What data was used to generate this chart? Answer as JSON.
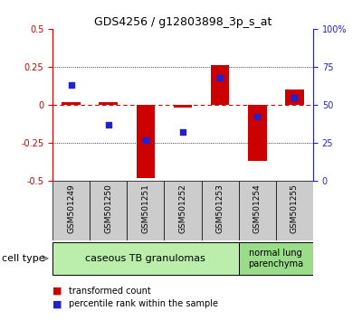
{
  "title": "GDS4256 / g12803898_3p_s_at",
  "samples": [
    "GSM501249",
    "GSM501250",
    "GSM501251",
    "GSM501252",
    "GSM501253",
    "GSM501254",
    "GSM501255"
  ],
  "red_values": [
    0.02,
    0.02,
    -0.48,
    -0.02,
    0.26,
    -0.37,
    0.1
  ],
  "blue_values_pct": [
    63,
    37,
    27,
    32,
    68,
    42,
    55
  ],
  "ylim_red": [
    -0.5,
    0.5
  ],
  "ylim_blue": [
    0,
    100
  ],
  "yticks_red": [
    -0.5,
    -0.25,
    0,
    0.25,
    0.5
  ],
  "yticks_blue": [
    0,
    25,
    50,
    75,
    100
  ],
  "ytick_labels_blue": [
    "0",
    "25",
    "50",
    "75",
    "100%"
  ],
  "hlines": [
    0.25,
    -0.25
  ],
  "zero_line_color": "#cc0000",
  "bar_width": 0.5,
  "red_color": "#cc0000",
  "blue_color": "#2222cc",
  "group1_samples": [
    0,
    1,
    2,
    3,
    4
  ],
  "group2_samples": [
    5,
    6
  ],
  "group1_label": "caseous TB granulomas",
  "group2_label": "normal lung\nparenchyma",
  "group1_color": "#bbeeaa",
  "group2_color": "#99dd88",
  "cell_type_label": "cell type",
  "legend_red": "transformed count",
  "legend_blue": "percentile rank within the sample",
  "background_color": "#ffffff",
  "plot_bg": "#ffffff",
  "tick_bg": "#cccccc"
}
